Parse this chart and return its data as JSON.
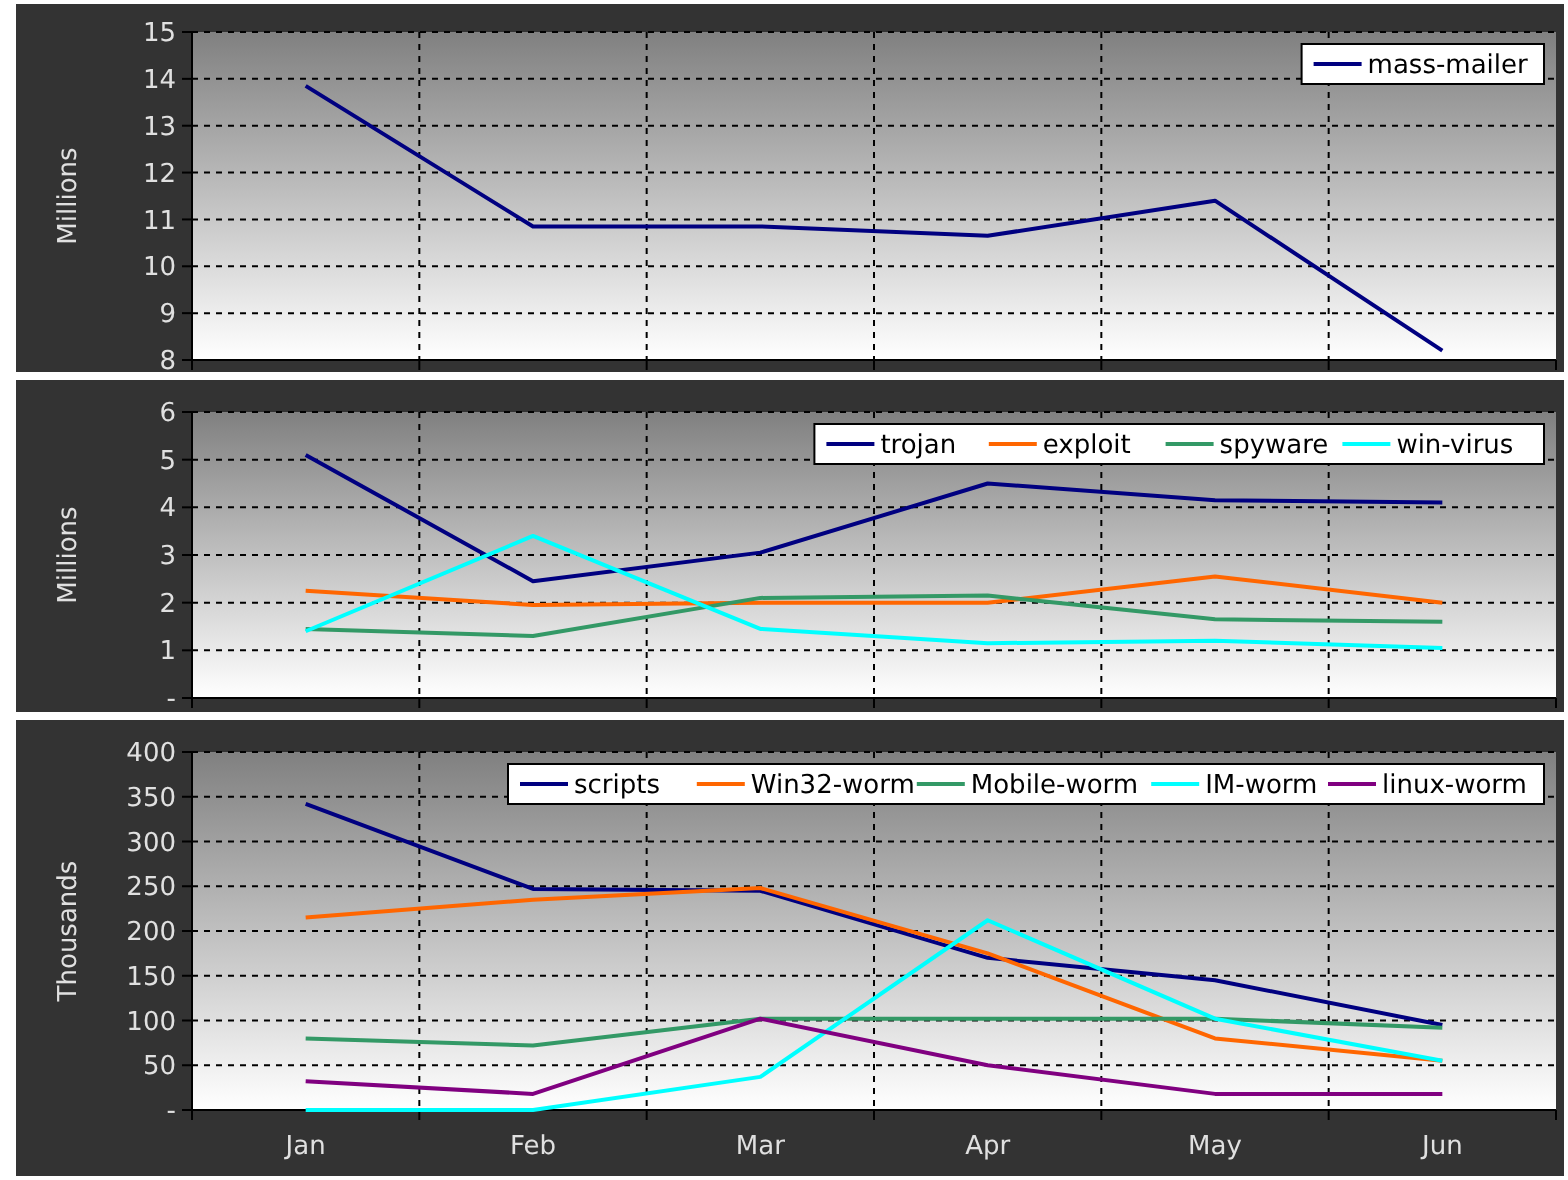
{
  "chart_data": [
    {
      "type": "line",
      "categories": [
        null,
        null,
        null,
        null,
        null,
        null
      ],
      "ylabel": "Millions",
      "ylim": [
        8,
        15
      ],
      "yticks": [
        8,
        9,
        10,
        11,
        12,
        13,
        14,
        15
      ],
      "grid": true,
      "legend": "top right",
      "tick_labels": "y",
      "series": [
        {
          "name": "mass-mailer",
          "color": "#000080",
          "values": [
            13.85,
            10.85,
            10.85,
            10.65,
            11.4,
            8.2
          ]
        }
      ]
    },
    {
      "type": "line",
      "categories": [
        null,
        null,
        null,
        null,
        null,
        null
      ],
      "ylabel": "Millions",
      "ylim": [
        0,
        6
      ],
      "yticks": [
        {
          "value": 0,
          "label": "-"
        },
        1,
        2,
        3,
        4,
        5,
        6
      ],
      "grid": true,
      "legend": "top right",
      "tick_labels": "y",
      "series": [
        {
          "name": "trojan",
          "color": "#000080",
          "values": [
            5.1,
            2.45,
            3.05,
            4.5,
            4.15,
            4.1
          ]
        },
        {
          "name": "exploit",
          "color": "#ff6600",
          "values": [
            2.25,
            1.95,
            2.0,
            2.0,
            2.55,
            2.0
          ]
        },
        {
          "name": "spyware",
          "color": "#339966",
          "values": [
            1.45,
            1.3,
            2.1,
            2.15,
            1.65,
            1.6
          ]
        },
        {
          "name": "win-virus",
          "color": "#00ffff",
          "values": [
            1.4,
            3.4,
            1.45,
            1.15,
            1.2,
            1.05
          ]
        }
      ]
    },
    {
      "type": "line",
      "categories": [
        "Jan",
        "Feb",
        "Mar",
        "Apr",
        "May",
        "Jun"
      ],
      "ylabel": "Thousands",
      "ylim": [
        0,
        400
      ],
      "yticks": [
        {
          "value": 0,
          "label": "-"
        },
        50,
        100,
        150,
        200,
        250,
        300,
        350,
        400
      ],
      "grid": true,
      "legend": "top right",
      "series": [
        {
          "name": "scripts",
          "color": "#000080",
          "values": [
            342,
            247,
            245,
            170,
            145,
            95
          ]
        },
        {
          "name": "Win32-worm",
          "color": "#ff6600",
          "values": [
            215,
            235,
            248,
            175,
            80,
            55
          ]
        },
        {
          "name": "Mobile-worm",
          "color": "#339966",
          "values": [
            80,
            72,
            102,
            102,
            102,
            92
          ]
        },
        {
          "name": "IM-worm",
          "color": "#00ffff",
          "values": [
            0,
            0,
            37,
            212,
            102,
            55
          ]
        },
        {
          "name": "linux-worm",
          "color": "#800080",
          "values": [
            32,
            18,
            102,
            50,
            18,
            18
          ]
        }
      ]
    }
  ]
}
